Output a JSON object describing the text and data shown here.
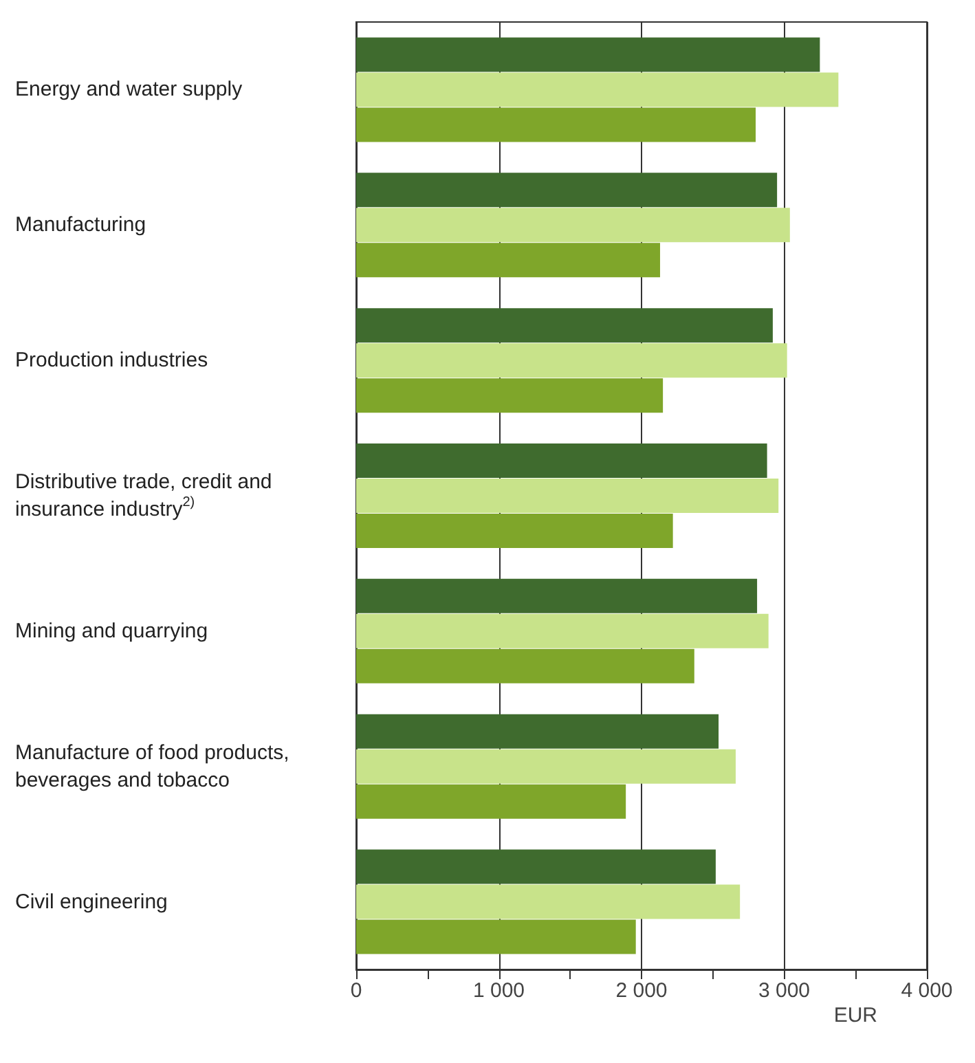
{
  "chart_data": {
    "type": "bar",
    "orientation": "horizontal",
    "xlabel": "EUR",
    "categories": [
      "Energy and water supply",
      "Manufacturing",
      "Production industries",
      "Distributive trade, credit and insurance industry$^{2)}$",
      "Mining and quarrying",
      "Manufacture of food products, beverages and tobacco",
      "Civil engineering"
    ],
    "series": [
      {
        "color": "#3f6b2e",
        "values": [
          3250,
          2950,
          2920,
          2880,
          2810,
          2540,
          2520
        ]
      },
      {
        "color": "#c8e38a",
        "values": [
          3380,
          3040,
          3020,
          2960,
          2890,
          2660,
          2690
        ]
      },
      {
        "color": "#7fa62a",
        "values": [
          2800,
          2130,
          2150,
          2220,
          2370,
          1890,
          1960
        ]
      }
    ],
    "xlim": [
      0,
      4000
    ],
    "xticks": [
      {
        "value": 0,
        "label": "0"
      },
      {
        "value": 500,
        "label": null
      },
      {
        "value": 1000,
        "label": "1 000"
      },
      {
        "value": 1500,
        "label": null
      },
      {
        "value": 2000,
        "label": "2 000"
      },
      {
        "value": 2500,
        "label": null
      },
      {
        "value": 3000,
        "label": "3 000"
      },
      {
        "value": 3500,
        "label": null
      },
      {
        "value": 4000,
        "label": "4 000"
      }
    ],
    "grid": "x"
  }
}
